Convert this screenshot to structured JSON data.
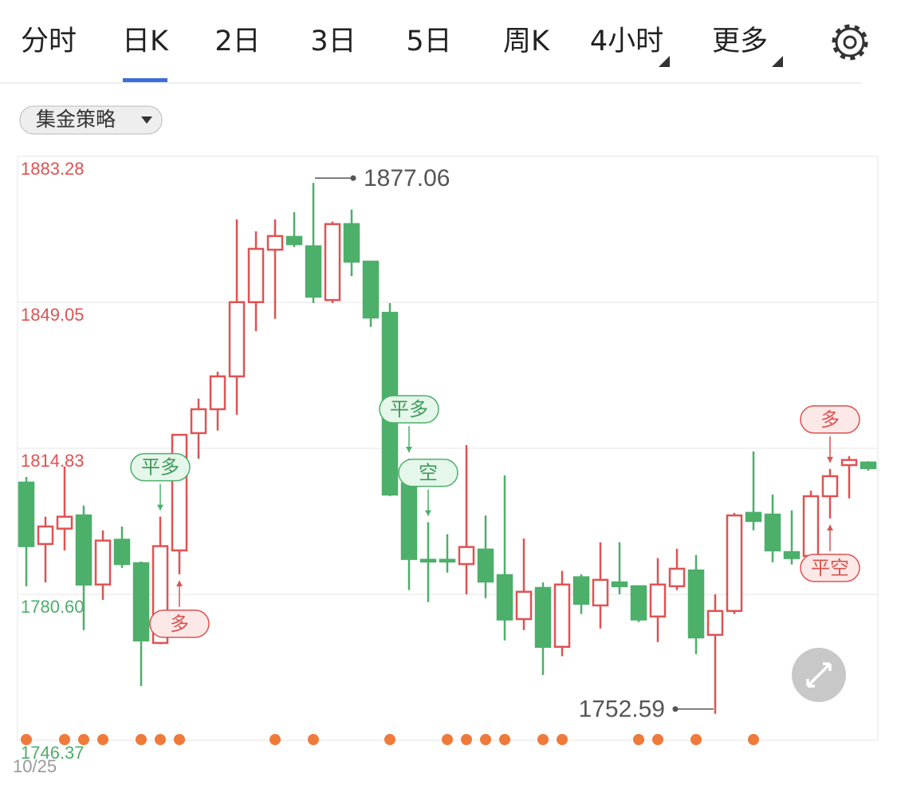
{
  "tabs": [
    "分时",
    "日K",
    "2日",
    "3日",
    "5日",
    "周K",
    "4小时",
    "更多"
  ],
  "active_tab": 1,
  "dropdown": "集金策略",
  "chart_data": {
    "type": "candlestick",
    "categories": [
      "10/25",
      null,
      null,
      null,
      null,
      null,
      null,
      null,
      null,
      null,
      null,
      null,
      null,
      null,
      null,
      null,
      null,
      null,
      null,
      null,
      null,
      null,
      null,
      null,
      null,
      null,
      null,
      null,
      null,
      null,
      null,
      null,
      null,
      null,
      null,
      null,
      null,
      null,
      null,
      null,
      null,
      null,
      null,
      null,
      null
    ],
    "open": [
      1806.8,
      1792.4,
      1796.0,
      1799.1,
      1782.9,
      1793.4,
      1787.9,
      1769.2,
      1790.9,
      1818.4,
      1824.0,
      1831.7,
      1849.1,
      1861.4,
      1864.4,
      1862.2,
      1849.6,
      1867.4,
      1858.6,
      1846.6,
      1806.6,
      1788.7,
      1788.7,
      1787.7,
      1791.1,
      1785.1,
      1774.8,
      1782.1,
      1768.3,
      1784.6,
      1778.0,
      1783.4,
      1782.5,
      1775.4,
      1782.5,
      1786.2,
      1771.1,
      1776.7,
      1799.7,
      1799.3,
      1790.5,
      1789.6,
      1803.6,
      1810.9,
      1811.5
    ],
    "high": [
      1808.1,
      1798.8,
      1810.6,
      1801.4,
      1795.6,
      1796.5,
      1788.3,
      1798.8,
      1818.0,
      1826.5,
      1832.8,
      1868.5,
      1865.7,
      1868.5,
      1870.2,
      1877.06,
      1868.0,
      1870.8,
      1858.6,
      1848.9,
      1812.4,
      1797.5,
      1794.7,
      1815.6,
      1799.1,
      1808.5,
      1793.7,
      1783.4,
      1786.1,
      1785.3,
      1792.8,
      1792.8,
      1782.5,
      1789.1,
      1791.3,
      1789.8,
      1780.6,
      1799.7,
      1814.1,
      1804.0,
      1800.3,
      1804.9,
      1810.0,
      1813.0,
      1811.8
    ],
    "low": [
      1782.5,
      1783.4,
      1790.9,
      1772.2,
      1779.3,
      1786.8,
      1759.1,
      1768.9,
      1785.3,
      1812.4,
      1819.0,
      1822.7,
      1842.3,
      1845.2,
      1862.0,
      1848.9,
      1848.9,
      1855.2,
      1843.3,
      1803.6,
      1781.6,
      1778.8,
      1785.7,
      1780.6,
      1779.7,
      1769.8,
      1772.2,
      1761.7,
      1766.1,
      1776.0,
      1772.6,
      1780.6,
      1774.1,
      1769.4,
      1781.6,
      1766.6,
      1752.59,
      1776.0,
      1795.6,
      1788.1,
      1787.6,
      1785.3,
      1798.4,
      1803.1,
      1809.6
    ],
    "close": [
      1791.9,
      1796.5,
      1798.8,
      1782.9,
      1793.2,
      1787.7,
      1769.8,
      1791.9,
      1818.0,
      1824.0,
      1831.7,
      1849.1,
      1861.6,
      1864.6,
      1862.7,
      1850.4,
      1867.4,
      1858.6,
      1845.5,
      1804.0,
      1788.9,
      1788.3,
      1788.3,
      1791.7,
      1783.6,
      1774.7,
      1781.2,
      1768.3,
      1782.9,
      1778.4,
      1784.0,
      1782.5,
      1774.7,
      1782.9,
      1786.6,
      1770.5,
      1776.7,
      1799.1,
      1797.8,
      1790.9,
      1789.1,
      1803.6,
      1808.3,
      1812.1,
      1810.2
    ],
    "up_color": "#e05252",
    "down_color": "#4caf6a",
    "ylim": [
      1746.37,
      1883.28
    ],
    "yticks": [
      1883.28,
      1849.05,
      1814.83,
      {
        "value": 1780.6,
        "label": "1780.60"
      },
      1746.37
    ],
    "ytick_colors": [
      "#e05252",
      "#e05252",
      "#e05252",
      "#4caf6a",
      "#4caf6a"
    ],
    "grid": true,
    "max_index": 15,
    "min_index": 36,
    "events": [
      0,
      2,
      3,
      4,
      6,
      7,
      8,
      13,
      15,
      19,
      22,
      23,
      24,
      25,
      27,
      28,
      32,
      33,
      35,
      38
    ],
    "event_color": "#f07a3a",
    "annotations": [
      {
        "text": "平多",
        "index": 7,
        "side": "above",
        "color": "green"
      },
      {
        "text": "多",
        "index": 8,
        "side": "below",
        "color": "red"
      },
      {
        "text": "平多",
        "index": 20,
        "side": "above",
        "color": "green"
      },
      {
        "text": "空",
        "index": 21,
        "side": "above",
        "color": "green"
      },
      {
        "text": "多",
        "index": 42,
        "side": "above",
        "color": "red"
      },
      {
        "text": "平空",
        "index": 42,
        "side": "below",
        "color": "red"
      }
    ]
  }
}
